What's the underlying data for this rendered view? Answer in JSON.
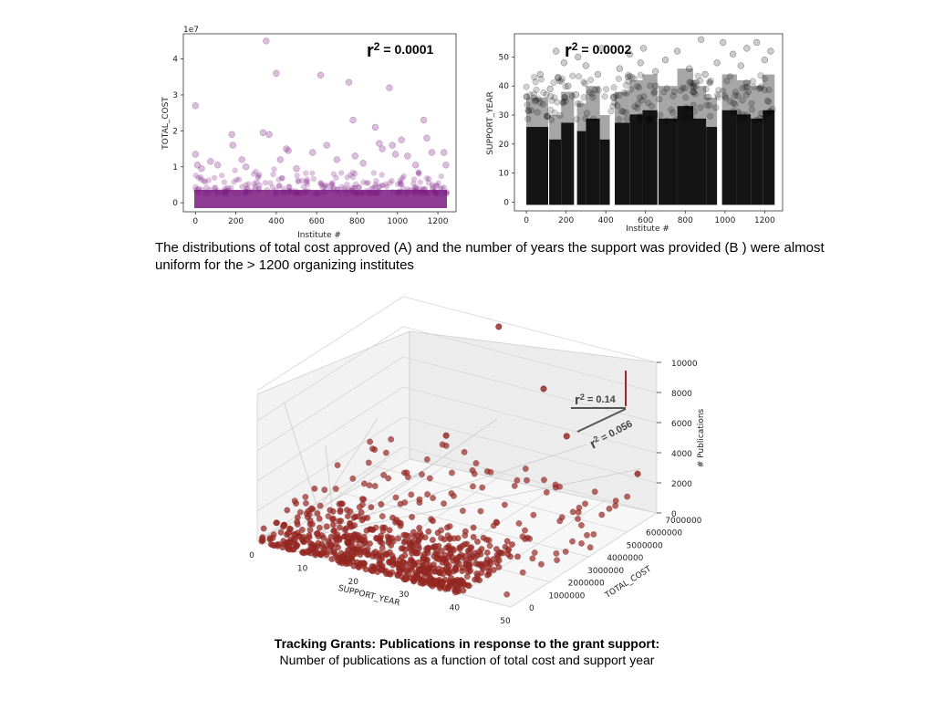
{
  "caption": "The distributions of total cost approved (A) and the number of years the support was provided (B ) were almost  uniform for the > 1200 organizing institutes",
  "bottom_title": "Tracking Grants: Publications in response to the grant support:",
  "bottom_subtitle": "Number of publications as a function of total cost and support year",
  "colors": {
    "purple": "#7b1a82",
    "black": "#000000",
    "red": "#9b2a24",
    "grey_line": "#555555"
  },
  "chart_data": [
    {
      "type": "scatter",
      "xlabel": "Institute #",
      "ylabel": "TOTAL_COST",
      "offset_label": "1e7",
      "annotation": {
        "base": "r",
        "sup": "2",
        "text": " = 0.0001"
      },
      "xlim": [
        -60,
        1290
      ],
      "ylim": [
        -0.25,
        4.7
      ],
      "xticks": [
        "0",
        "200",
        "400",
        "600",
        "800",
        "1000",
        "1200"
      ],
      "yticks": [
        "0",
        "1",
        "2",
        "3",
        "4"
      ],
      "points": [
        [
          0,
          2.7
        ],
        [
          0,
          1.35
        ],
        [
          10,
          1.05
        ],
        [
          30,
          0.95
        ],
        [
          75,
          1.15
        ],
        [
          110,
          1.05
        ],
        [
          180,
          1.9
        ],
        [
          185,
          1.6
        ],
        [
          230,
          1.2
        ],
        [
          250,
          1.0
        ],
        [
          335,
          1.95
        ],
        [
          350,
          4.5
        ],
        [
          365,
          1.9
        ],
        [
          400,
          3.6
        ],
        [
          420,
          1.2
        ],
        [
          450,
          1.5
        ],
        [
          460,
          1.45
        ],
        [
          500,
          0.95
        ],
        [
          580,
          1.4
        ],
        [
          620,
          3.55
        ],
        [
          650,
          1.6
        ],
        [
          700,
          1.2
        ],
        [
          760,
          3.35
        ],
        [
          780,
          2.3
        ],
        [
          790,
          1.3
        ],
        [
          830,
          1.1
        ],
        [
          890,
          2.1
        ],
        [
          910,
          1.65
        ],
        [
          925,
          1.5
        ],
        [
          960,
          3.2
        ],
        [
          975,
          1.6
        ],
        [
          990,
          1.35
        ],
        [
          1020,
          1.75
        ],
        [
          1050,
          1.3
        ],
        [
          1090,
          1.05
        ],
        [
          1130,
          2.3
        ],
        [
          1145,
          1.8
        ],
        [
          1170,
          1.4
        ],
        [
          1230,
          1.4
        ],
        [
          1240,
          1.05
        ]
      ]
    },
    {
      "type": "scatter",
      "xlabel": "Institute #",
      "ylabel": "SUPPORT_YEAR",
      "annotation": {
        "base": "r",
        "sup": "2",
        "text": " = 0.0002"
      },
      "xlim": [
        -60,
        1290
      ],
      "ylim": [
        -3,
        58
      ],
      "xticks": [
        "0",
        "200",
        "400",
        "600",
        "800",
        "1000",
        "1200"
      ],
      "yticks": [
        "0",
        "10",
        "20",
        "30",
        "40",
        "50"
      ],
      "points": [
        [
          70,
          44
        ],
        [
          120,
          39
        ],
        [
          150,
          52
        ],
        [
          160,
          43
        ],
        [
          190,
          48
        ],
        [
          210,
          40
        ],
        [
          260,
          50
        ],
        [
          300,
          47
        ],
        [
          360,
          44
        ],
        [
          380,
          53
        ],
        [
          470,
          46
        ],
        [
          520,
          51
        ],
        [
          575,
          48
        ],
        [
          590,
          53
        ],
        [
          650,
          45
        ],
        [
          700,
          49
        ],
        [
          760,
          52
        ],
        [
          820,
          46
        ],
        [
          880,
          56
        ],
        [
          900,
          44
        ],
        [
          960,
          48
        ],
        [
          990,
          55
        ],
        [
          1040,
          51
        ],
        [
          1080,
          47
        ],
        [
          1110,
          53
        ],
        [
          1160,
          55
        ],
        [
          1200,
          49
        ],
        [
          1230,
          52
        ],
        [
          250,
          37
        ],
        [
          440,
          36
        ],
        [
          650,
          40
        ],
        [
          840,
          38
        ]
      ]
    },
    {
      "type": "scatter",
      "title": "",
      "xlabel": "SUPPORT_YEAR",
      "ylabel": "TOTAL_COST",
      "zlabel": "# Publications",
      "xticks": [
        "0",
        "10",
        "20",
        "30",
        "40",
        "50"
      ],
      "yticks": [
        "0",
        "1000000",
        "2000000",
        "3000000",
        "4000000",
        "5000000",
        "6000000",
        "7000000"
      ],
      "zticks": [
        "0",
        "2000",
        "4000",
        "6000",
        "8000",
        "10000"
      ],
      "xlim": [
        0,
        50
      ],
      "ylim": [
        0,
        7500000
      ],
      "zlim": [
        0,
        10000
      ],
      "annotations": [
        {
          "base": "r",
          "sup": "2",
          "text": " = 0.14"
        },
        {
          "base": "r",
          "sup": "2",
          "text": " = 0.056"
        }
      ]
    }
  ]
}
